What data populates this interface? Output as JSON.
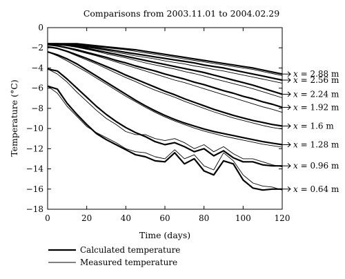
{
  "chart_data": {
    "type": "line",
    "title": "Comparisons from 2003.11.01 to 2004.02.29",
    "xlabel": "Time (days)",
    "ylabel": "Temperature (°C)",
    "xlim": [
      0,
      120
    ],
    "ylim": [
      -18,
      0
    ],
    "x_ticks": [
      0,
      20,
      40,
      60,
      80,
      100,
      120
    ],
    "y_ticks": [
      0,
      -2,
      -4,
      -6,
      -8,
      -10,
      -12,
      -14,
      -16,
      -18
    ],
    "grid": false,
    "legend_position": "bottom-left",
    "legend": [
      {
        "label": "Calculated temperature",
        "style": "thick"
      },
      {
        "label": "Measured temperature",
        "style": "thin"
      }
    ],
    "x": [
      0,
      5,
      10,
      15,
      20,
      25,
      30,
      35,
      40,
      45,
      50,
      55,
      60,
      65,
      70,
      75,
      80,
      85,
      90,
      95,
      100,
      105,
      110,
      115,
      120
    ],
    "series": [
      {
        "label": "x = 2.88 m",
        "label_prefix": "x",
        "label_suffix": " = 2.88 m",
        "calculated": [
          -1.6,
          -1.6,
          -1.6,
          -1.6,
          -1.7,
          -1.8,
          -1.9,
          -2.0,
          -2.1,
          -2.2,
          -2.35,
          -2.5,
          -2.65,
          -2.8,
          -2.95,
          -3.1,
          -3.25,
          -3.4,
          -3.55,
          -3.7,
          -3.85,
          -4.0,
          -4.2,
          -4.4,
          -4.6
        ],
        "measured": [
          -1.6,
          -1.6,
          -1.65,
          -1.7,
          -1.8,
          -1.9,
          -2.0,
          -2.1,
          -2.2,
          -2.35,
          -2.5,
          -2.65,
          -2.8,
          -2.95,
          -3.1,
          -3.25,
          -3.4,
          -3.55,
          -3.7,
          -3.85,
          -4.0,
          -4.15,
          -4.35,
          -4.55,
          -4.75
        ]
      },
      {
        "label": "x = 2.56 m",
        "label_prefix": "x",
        "label_suffix": " = 2.56 m",
        "calculated": [
          -1.6,
          -1.6,
          -1.65,
          -1.75,
          -1.85,
          -2.0,
          -2.15,
          -2.3,
          -2.45,
          -2.6,
          -2.75,
          -2.9,
          -3.05,
          -3.2,
          -3.35,
          -3.5,
          -3.7,
          -3.85,
          -4.0,
          -4.2,
          -4.4,
          -4.6,
          -4.8,
          -5.0,
          -5.2
        ],
        "measured": [
          -1.6,
          -1.65,
          -1.7,
          -1.8,
          -1.95,
          -2.1,
          -2.25,
          -2.45,
          -2.6,
          -2.8,
          -2.95,
          -3.1,
          -3.3,
          -3.45,
          -3.6,
          -3.8,
          -3.95,
          -4.15,
          -4.3,
          -4.5,
          -4.7,
          -4.9,
          -5.1,
          -5.3,
          -5.5
        ]
      },
      {
        "label": "x = 2.24 m",
        "label_prefix": "x",
        "label_suffix": " = 2.24 m",
        "calculated": [
          -1.6,
          -1.65,
          -1.75,
          -1.9,
          -2.05,
          -2.25,
          -2.45,
          -2.65,
          -2.85,
          -3.05,
          -3.25,
          -3.45,
          -3.65,
          -3.85,
          -4.05,
          -4.25,
          -4.45,
          -4.7,
          -4.95,
          -5.2,
          -5.45,
          -5.7,
          -6.0,
          -6.3,
          -6.6
        ],
        "measured": [
          -1.6,
          -1.7,
          -1.8,
          -1.95,
          -2.15,
          -2.35,
          -2.6,
          -2.8,
          -3.0,
          -3.25,
          -3.5,
          -3.7,
          -3.9,
          -4.1,
          -4.35,
          -4.55,
          -4.8,
          -5.05,
          -5.3,
          -5.55,
          -5.8,
          -6.05,
          -6.35,
          -6.65,
          -6.95
        ]
      },
      {
        "label": "x = 1.92 m",
        "label_prefix": "x",
        "label_suffix": " = 1.92 m",
        "calculated": [
          -1.7,
          -1.8,
          -2.0,
          -2.2,
          -2.45,
          -2.7,
          -2.95,
          -3.25,
          -3.5,
          -3.8,
          -4.05,
          -4.3,
          -4.6,
          -4.85,
          -5.1,
          -5.4,
          -5.65,
          -5.95,
          -6.25,
          -6.5,
          -6.8,
          -7.05,
          -7.35,
          -7.6,
          -7.9
        ],
        "measured": [
          -1.7,
          -1.85,
          -2.05,
          -2.3,
          -2.55,
          -2.8,
          -3.1,
          -3.4,
          -3.7,
          -4.0,
          -4.3,
          -4.6,
          -4.9,
          -5.2,
          -5.45,
          -5.75,
          -6.05,
          -6.35,
          -6.65,
          -6.95,
          -7.25,
          -7.55,
          -7.85,
          -8.1,
          -8.4
        ]
      },
      {
        "label": "x = 1.6 m",
        "label_prefix": "x",
        "label_suffix": " = 1.6 m",
        "calculated": [
          -1.9,
          -2.05,
          -2.35,
          -2.7,
          -3.05,
          -3.45,
          -3.85,
          -4.25,
          -4.7,
          -5.1,
          -5.5,
          -5.9,
          -6.3,
          -6.65,
          -7.05,
          -7.4,
          -7.75,
          -8.1,
          -8.4,
          -8.7,
          -8.95,
          -9.2,
          -9.4,
          -9.6,
          -9.75
        ],
        "measured": [
          -1.9,
          -2.1,
          -2.4,
          -2.8,
          -3.2,
          -3.6,
          -4.05,
          -4.5,
          -4.95,
          -5.35,
          -5.8,
          -6.2,
          -6.55,
          -6.9,
          -7.3,
          -7.65,
          -8.0,
          -8.35,
          -8.65,
          -8.95,
          -9.2,
          -9.45,
          -9.7,
          -9.9,
          -10.05
        ]
      },
      {
        "label": "x = 1.28 m",
        "label_prefix": "x",
        "label_suffix": " = 1.28 m",
        "calculated": [
          -2.4,
          -2.7,
          -3.1,
          -3.6,
          -4.2,
          -4.8,
          -5.4,
          -6.0,
          -6.6,
          -7.2,
          -7.75,
          -8.25,
          -8.7,
          -9.1,
          -9.45,
          -9.75,
          -10.05,
          -10.3,
          -10.5,
          -10.7,
          -10.9,
          -11.1,
          -11.3,
          -11.45,
          -11.6
        ],
        "measured": [
          -2.4,
          -2.8,
          -3.3,
          -3.85,
          -4.4,
          -5.0,
          -5.6,
          -6.2,
          -6.8,
          -7.35,
          -7.9,
          -8.4,
          -8.85,
          -9.25,
          -9.6,
          -9.95,
          -10.25,
          -10.5,
          -10.75,
          -10.95,
          -11.15,
          -11.35,
          -11.55,
          -11.7,
          -11.85
        ]
      },
      {
        "label": "x = 0.96 m",
        "label_prefix": "x",
        "label_suffix": " = 0.96 m",
        "calculated": [
          -4.1,
          -4.3,
          -5.1,
          -6.0,
          -6.9,
          -7.8,
          -8.6,
          -9.3,
          -9.9,
          -10.4,
          -10.8,
          -11.3,
          -11.6,
          -11.4,
          -11.8,
          -12.3,
          -12.0,
          -12.7,
          -12.2,
          -12.9,
          -13.3,
          -13.3,
          -13.6,
          -13.7,
          -13.7
        ],
        "measured": [
          -4.1,
          -4.6,
          -5.4,
          -6.4,
          -7.3,
          -8.2,
          -9.0,
          -9.6,
          -10.3,
          -10.6,
          -10.6,
          -11.0,
          -11.2,
          -11.0,
          -11.4,
          -12.0,
          -11.6,
          -12.3,
          -11.8,
          -12.5,
          -13.0,
          -13.0,
          -13.3,
          -13.6,
          -13.8
        ]
      },
      {
        "label": "x = 0.64 m",
        "label_prefix": "x",
        "label_suffix": " = 0.64 m",
        "calculated": [
          -5.8,
          -6.1,
          -7.5,
          -8.6,
          -9.6,
          -10.5,
          -11.1,
          -11.6,
          -12.1,
          -12.6,
          -12.8,
          -13.2,
          -13.3,
          -12.4,
          -13.5,
          -13.0,
          -14.2,
          -14.6,
          -13.2,
          -13.5,
          -15.1,
          -15.9,
          -16.1,
          -16.0,
          -16.0
        ],
        "measured": [
          -5.8,
          -6.5,
          -7.8,
          -8.8,
          -9.8,
          -10.4,
          -10.9,
          -11.4,
          -12.0,
          -12.3,
          -12.4,
          -12.8,
          -13.0,
          -12.1,
          -13.0,
          -12.6,
          -13.7,
          -14.1,
          -12.4,
          -13.2,
          -14.6,
          -15.4,
          -15.7,
          -15.8,
          -16.1
        ]
      }
    ]
  }
}
